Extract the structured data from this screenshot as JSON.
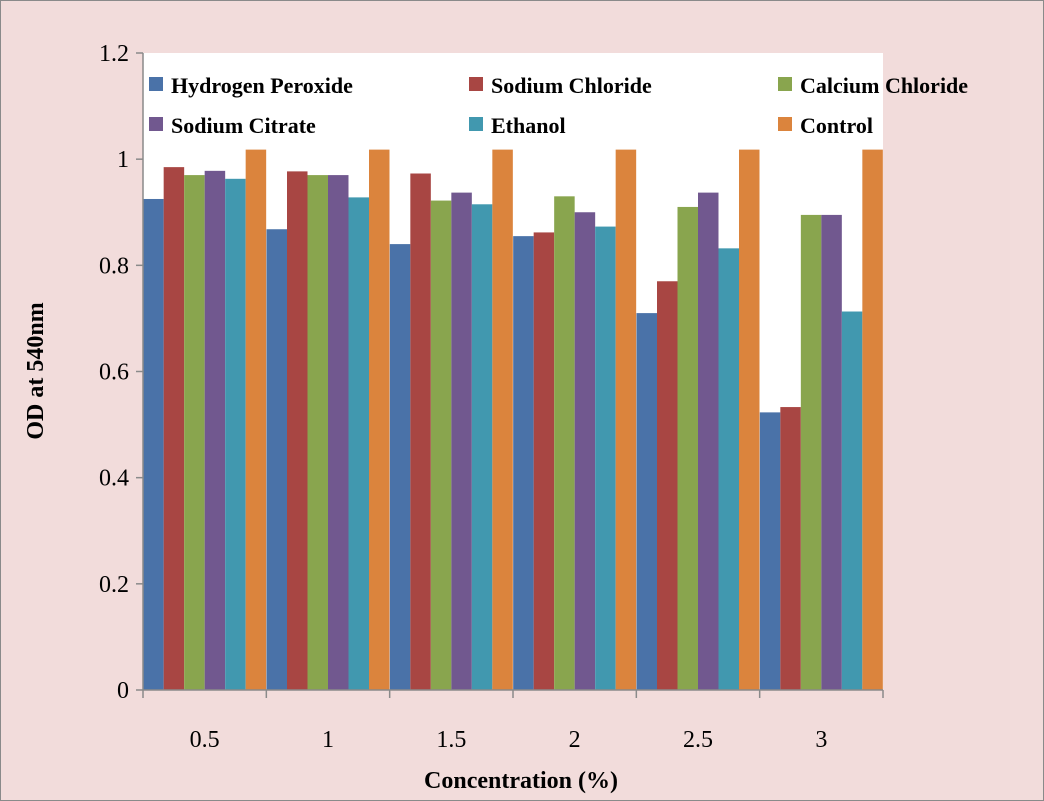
{
  "chart_data": {
    "type": "bar",
    "title": "",
    "xlabel": "Concentration (%)",
    "ylabel": "OD at 540nm",
    "ylim": [
      0,
      1.2
    ],
    "yticks": [
      "0",
      "0.2",
      "0.4",
      "0.6",
      "0.8",
      "1",
      "1.2"
    ],
    "categories": [
      "0.5",
      "1",
      "1.5",
      "2",
      "2.5",
      "3"
    ],
    "grid": false,
    "legend_position": "top",
    "series": [
      {
        "name": "Hydrogen Peroxide",
        "color": "#4a72a8",
        "values": [
          0.925,
          0.868,
          0.84,
          0.855,
          0.71,
          0.523
        ]
      },
      {
        "name": "Sodium Chloride",
        "color": "#a84643",
        "values": [
          0.985,
          0.977,
          0.973,
          0.862,
          0.77,
          0.533
        ]
      },
      {
        "name": "Calcium Chloride",
        "color": "#89a54e",
        "values": [
          0.97,
          0.97,
          0.922,
          0.93,
          0.91,
          0.895
        ]
      },
      {
        "name": "Sodium Citrate",
        "color": "#71588f",
        "values": [
          0.978,
          0.97,
          0.937,
          0.9,
          0.937,
          0.895
        ]
      },
      {
        "name": "Ethanol",
        "color": "#4198af",
        "values": [
          0.963,
          0.928,
          0.915,
          0.873,
          0.832,
          0.713
        ]
      },
      {
        "name": "Control",
        "color": "#db843d",
        "values": [
          1.018,
          1.018,
          1.018,
          1.018,
          1.018,
          1.018
        ]
      }
    ]
  }
}
